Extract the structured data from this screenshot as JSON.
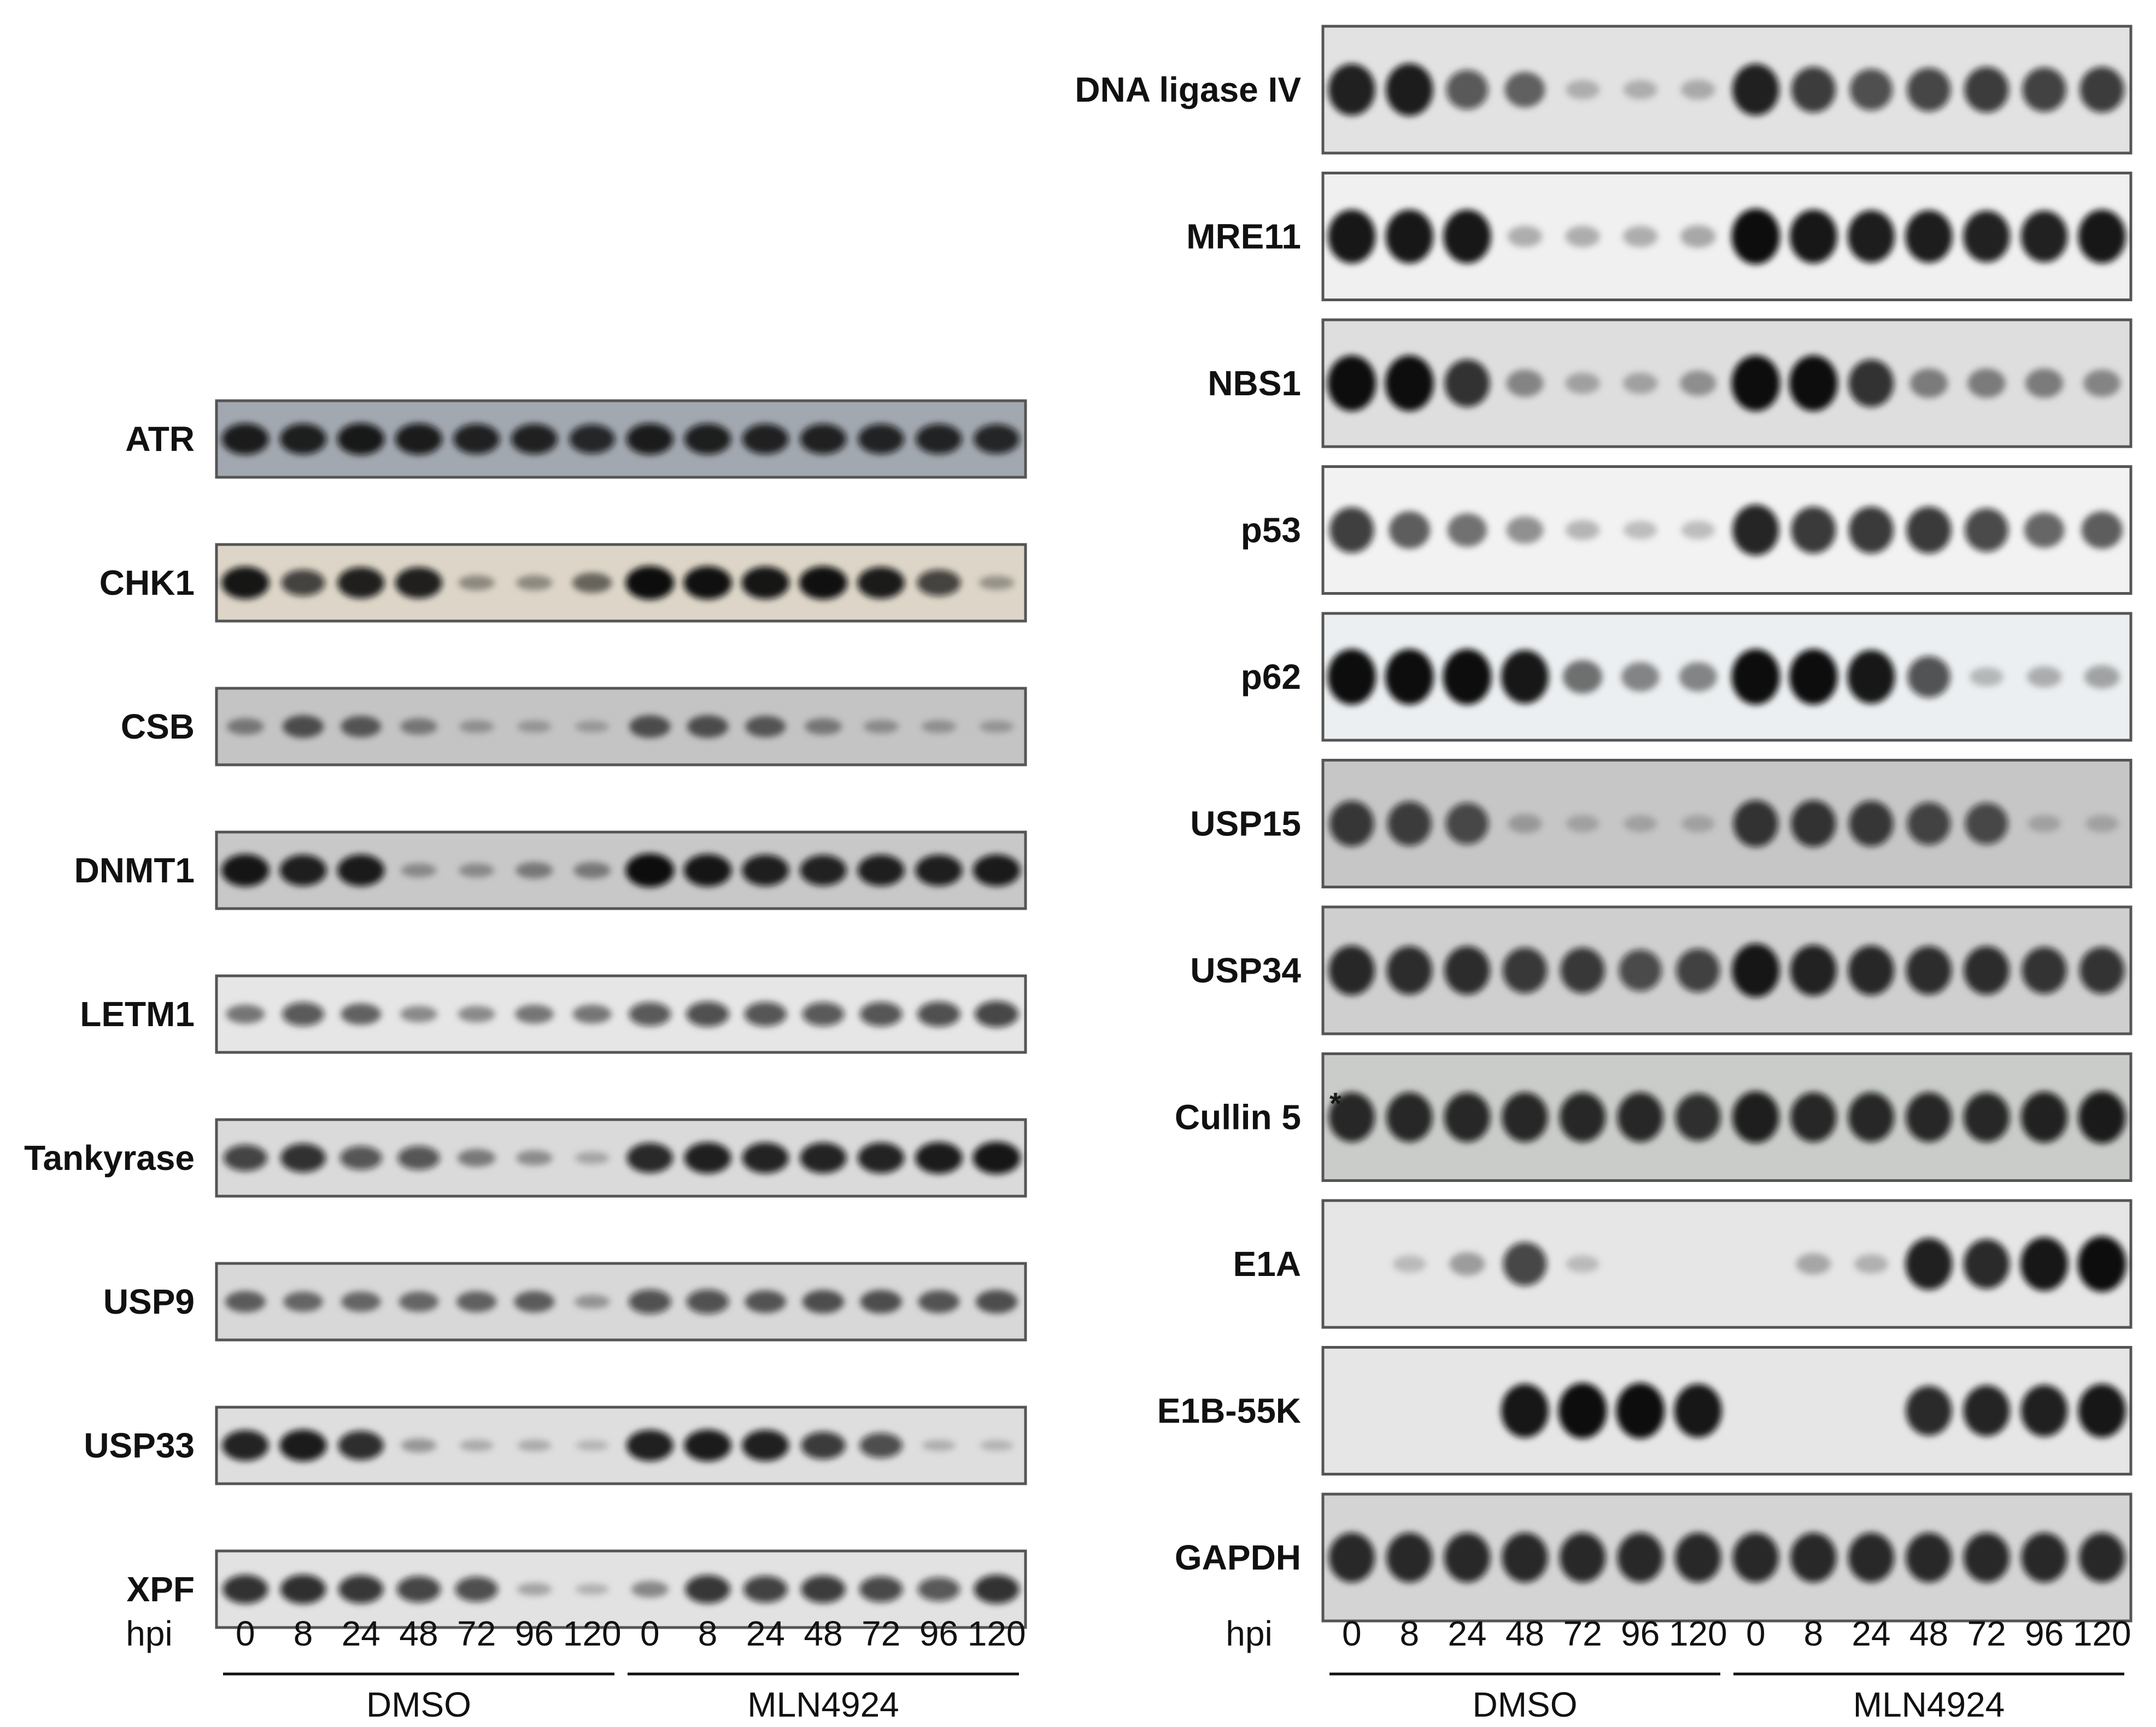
{
  "figure": {
    "hpi_label": "hpi",
    "lanes": [
      "0",
      "8",
      "24",
      "48",
      "72",
      "96",
      "120",
      "0",
      "8",
      "24",
      "48",
      "72",
      "96",
      "120"
    ],
    "groups": [
      "DMSO",
      "MLN4924"
    ],
    "left_panel": {
      "blots": [
        {
          "label": "ATR",
          "bg": "#a2a8b0",
          "bands": [
            0.9,
            0.88,
            0.92,
            0.9,
            0.86,
            0.86,
            0.82,
            0.9,
            0.88,
            0.86,
            0.86,
            0.85,
            0.85,
            0.83
          ]
        },
        {
          "label": "CHK1",
          "bg": "#ddd6c8",
          "bands": [
            0.95,
            0.7,
            0.9,
            0.9,
            0.25,
            0.25,
            0.45,
            1.0,
            0.98,
            0.95,
            0.98,
            0.92,
            0.7,
            0.2
          ]
        },
        {
          "label": "CSB",
          "bg": "#c4c4c4",
          "bands": [
            0.3,
            0.55,
            0.5,
            0.3,
            0.15,
            0.12,
            0.1,
            0.55,
            0.55,
            0.5,
            0.3,
            0.18,
            0.15,
            0.12
          ]
        },
        {
          "label": "DNMT1",
          "bg": "#c8c8c8",
          "bands": [
            0.95,
            0.9,
            0.92,
            0.2,
            0.2,
            0.3,
            0.3,
            1.0,
            0.95,
            0.9,
            0.88,
            0.9,
            0.9,
            0.92
          ]
        },
        {
          "label": "LETM1",
          "bg": "#e6e6e6",
          "bands": [
            0.4,
            0.6,
            0.5,
            0.3,
            0.3,
            0.4,
            0.4,
            0.6,
            0.65,
            0.62,
            0.6,
            0.62,
            0.65,
            0.7
          ]
        },
        {
          "label": "Tankyrase",
          "bg": "#dadada",
          "bands": [
            0.7,
            0.8,
            0.6,
            0.6,
            0.35,
            0.25,
            0.12,
            0.85,
            0.9,
            0.88,
            0.88,
            0.88,
            0.92,
            0.95
          ]
        },
        {
          "label": "USP9",
          "bg": "#d8d8d8",
          "bands": [
            0.5,
            0.45,
            0.45,
            0.45,
            0.48,
            0.5,
            0.2,
            0.62,
            0.62,
            0.55,
            0.58,
            0.58,
            0.55,
            0.58
          ]
        },
        {
          "label": "USP33",
          "bg": "#dedede",
          "bands": [
            0.88,
            0.92,
            0.82,
            0.2,
            0.1,
            0.1,
            0.05,
            0.9,
            0.92,
            0.9,
            0.75,
            0.65,
            0.08,
            0.06
          ]
        },
        {
          "label": "XPF",
          "bg": "#e2e2e2",
          "bands": [
            0.8,
            0.82,
            0.78,
            0.7,
            0.65,
            0.15,
            0.08,
            0.3,
            0.78,
            0.72,
            0.75,
            0.68,
            0.6,
            0.8
          ]
        }
      ]
    },
    "right_panel": {
      "blots": [
        {
          "label": "DNA ligase IV",
          "bg": "#e2e2e2",
          "bands": [
            0.9,
            0.92,
            0.6,
            0.5,
            0.1,
            0.1,
            0.12,
            0.9,
            0.75,
            0.65,
            0.7,
            0.75,
            0.72,
            0.75
          ]
        },
        {
          "label": "MRE11",
          "bg": "#f0f0f0",
          "bands": [
            0.95,
            0.95,
            0.95,
            0.15,
            0.15,
            0.15,
            0.18,
            1.0,
            0.95,
            0.92,
            0.92,
            0.9,
            0.9,
            0.95
          ]
        },
        {
          "label": "NBS1",
          "bg": "#dedede",
          "bands": [
            1.0,
            1.0,
            0.8,
            0.3,
            0.15,
            0.15,
            0.25,
            1.0,
            1.0,
            0.8,
            0.35,
            0.35,
            0.35,
            0.3
          ]
        },
        {
          "label": "p53",
          "bg": "#f2f2f2",
          "bands": [
            0.75,
            0.55,
            0.45,
            0.3,
            0.12,
            0.08,
            0.08,
            0.88,
            0.78,
            0.78,
            0.78,
            0.7,
            0.5,
            0.55
          ]
        },
        {
          "label": "p62",
          "bg": "#eceff1",
          "bands": [
            1.0,
            1.0,
            1.0,
            0.95,
            0.45,
            0.35,
            0.35,
            1.0,
            1.0,
            0.95,
            0.65,
            0.1,
            0.15,
            0.2
          ]
        },
        {
          "label": "USP15",
          "bg": "#c6c6c6",
          "bands": [
            0.75,
            0.72,
            0.65,
            0.1,
            0.05,
            0.05,
            0.05,
            0.78,
            0.78,
            0.75,
            0.68,
            0.65,
            0.05,
            0.05
          ]
        },
        {
          "label": "USP34",
          "bg": "#cfcfcf",
          "bands": [
            0.85,
            0.82,
            0.82,
            0.75,
            0.75,
            0.65,
            0.7,
            0.95,
            0.88,
            0.85,
            0.82,
            0.82,
            0.78,
            0.78
          ]
        },
        {
          "label": "Cullin 5",
          "bg": "#c9ccc8",
          "bands": [
            0.85,
            0.85,
            0.85,
            0.85,
            0.85,
            0.85,
            0.8,
            0.9,
            0.85,
            0.85,
            0.85,
            0.85,
            0.88,
            0.92
          ],
          "marker": "*"
        },
        {
          "label": "E1A",
          "bg": "#e6e6e6",
          "bands": [
            0,
            0.05,
            0.2,
            0.7,
            0.05,
            0,
            0,
            0,
            0.15,
            0.1,
            0.9,
            0.85,
            0.95,
            1.0
          ]
        },
        {
          "label": "E1B-55K",
          "bg": "#e6e6e6",
          "bands": [
            0,
            0,
            0,
            0.95,
            1.0,
            1.0,
            0.95,
            0,
            0,
            0,
            0.85,
            0.88,
            0.9,
            0.95
          ]
        },
        {
          "label": "GAPDH",
          "bg": "#d4d4d4",
          "bands": [
            0.85,
            0.85,
            0.85,
            0.85,
            0.85,
            0.85,
            0.85,
            0.85,
            0.85,
            0.85,
            0.85,
            0.85,
            0.85,
            0.85
          ]
        }
      ]
    }
  }
}
